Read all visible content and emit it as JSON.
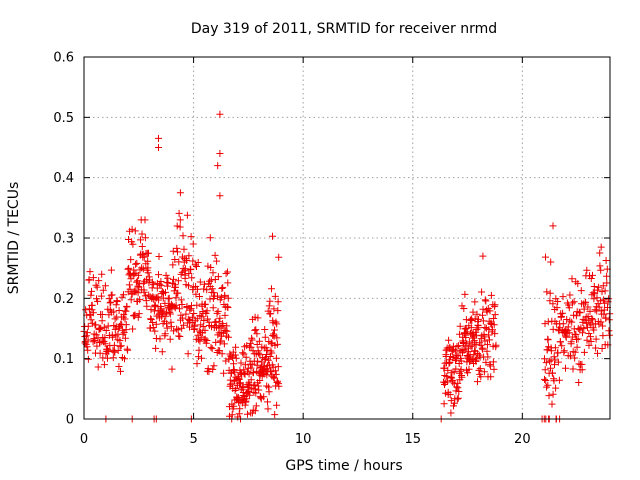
{
  "chart_data": {
    "type": "scatter",
    "title": "Day 319 of 2011, SRMTID for receiver nrmd",
    "xlabel": "GPS time / hours",
    "ylabel": "SRMTID / TECUs",
    "xlim": [
      0,
      24
    ],
    "ylim": [
      0,
      0.6
    ],
    "xticks": [
      0,
      5,
      10,
      15,
      20
    ],
    "yticks": [
      0,
      0.1,
      0.2,
      0.3,
      0.4,
      0.5,
      0.6
    ],
    "xtick_labels": [
      "0",
      "5",
      "10",
      "15",
      "20"
    ],
    "ytick_labels": [
      "0",
      "0.1",
      "0.2",
      "0.3",
      "0.4",
      "0.5",
      "0.6"
    ],
    "grid": true,
    "marker": "plus",
    "color": "#ee0000",
    "series": [
      {
        "name": "SRMTID",
        "segments": [
          {
            "t_start": 0.0,
            "t_end": 1.0,
            "min": 0.06,
            "max": 0.27,
            "center": 0.16,
            "n": 70
          },
          {
            "t_start": 1.0,
            "t_end": 2.0,
            "min": 0.05,
            "max": 0.25,
            "center": 0.15,
            "n": 70
          },
          {
            "t_start": 2.0,
            "t_end": 3.0,
            "min": 0.12,
            "max": 0.33,
            "center": 0.24,
            "n": 80
          },
          {
            "t_start": 3.0,
            "t_end": 4.0,
            "min": 0.1,
            "max": 0.28,
            "center": 0.19,
            "n": 80
          },
          {
            "t_start": 4.0,
            "t_end": 5.0,
            "min": 0.06,
            "max": 0.37,
            "center": 0.22,
            "n": 80
          },
          {
            "t_start": 5.0,
            "t_end": 6.0,
            "min": 0.07,
            "max": 0.34,
            "center": 0.17,
            "n": 80
          },
          {
            "t_start": 6.0,
            "t_end": 6.6,
            "min": 0.05,
            "max": 0.28,
            "center": 0.16,
            "n": 50
          },
          {
            "t_start": 6.6,
            "t_end": 7.5,
            "min": 0.0,
            "max": 0.17,
            "center": 0.06,
            "n": 90
          },
          {
            "t_start": 7.5,
            "t_end": 8.4,
            "min": 0.01,
            "max": 0.22,
            "center": 0.09,
            "n": 90
          },
          {
            "t_start": 8.4,
            "t_end": 8.9,
            "min": 0.0,
            "max": 0.3,
            "center": 0.12,
            "n": 50
          },
          {
            "t_start": 16.4,
            "t_end": 17.2,
            "min": 0.01,
            "max": 0.17,
            "center": 0.08,
            "n": 70
          },
          {
            "t_start": 17.2,
            "t_end": 18.0,
            "min": 0.06,
            "max": 0.24,
            "center": 0.13,
            "n": 80
          },
          {
            "t_start": 18.0,
            "t_end": 18.8,
            "min": 0.07,
            "max": 0.27,
            "center": 0.13,
            "n": 60
          },
          {
            "t_start": 21.0,
            "t_end": 21.6,
            "min": 0.0,
            "max": 0.32,
            "center": 0.12,
            "n": 50
          },
          {
            "t_start": 21.6,
            "t_end": 22.8,
            "min": 0.04,
            "max": 0.25,
            "center": 0.15,
            "n": 80
          },
          {
            "t_start": 22.8,
            "t_end": 24.0,
            "min": 0.09,
            "max": 0.29,
            "center": 0.18,
            "n": 80
          }
        ],
        "outliers": [
          {
            "x": 3.4,
            "y": 0.465
          },
          {
            "x": 3.4,
            "y": 0.45
          },
          {
            "x": 6.2,
            "y": 0.505
          },
          {
            "x": 6.2,
            "y": 0.44
          },
          {
            "x": 6.1,
            "y": 0.42
          },
          {
            "x": 6.2,
            "y": 0.37
          },
          {
            "x": 4.4,
            "y": 0.375
          },
          {
            "x": 8.6,
            "y": 0.303
          },
          {
            "x": 18.2,
            "y": 0.27
          },
          {
            "x": 21.4,
            "y": 0.32
          },
          {
            "x": 23.6,
            "y": 0.285
          },
          {
            "x": 1.0,
            "y": 0.0
          },
          {
            "x": 2.2,
            "y": 0.0
          },
          {
            "x": 3.2,
            "y": 0.0
          },
          {
            "x": 3.3,
            "y": 0.0
          },
          {
            "x": 4.9,
            "y": 0.0
          },
          {
            "x": 16.3,
            "y": 0.0
          },
          {
            "x": 20.9,
            "y": 0.0
          },
          {
            "x": 21.0,
            "y": 0.0
          },
          {
            "x": 21.2,
            "y": 0.0
          },
          {
            "x": 21.7,
            "y": 0.0
          }
        ]
      }
    ]
  }
}
